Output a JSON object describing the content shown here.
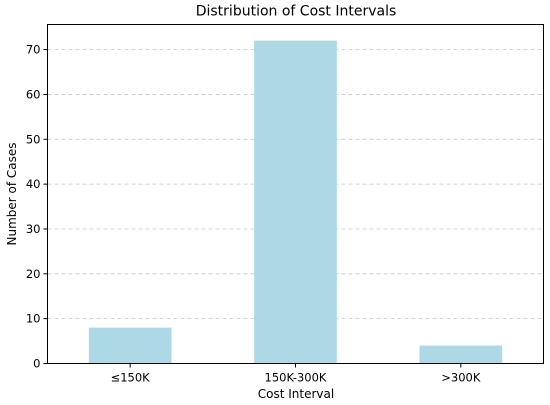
{
  "chart_data": {
    "type": "bar",
    "title": "Distribution of Cost Intervals",
    "xlabel": "Cost Interval",
    "ylabel": "Number of Cases",
    "categories": [
      "≤150K",
      "150K-300K",
      ">300K"
    ],
    "values": [
      8,
      72,
      4
    ],
    "ylim": [
      0,
      75.6
    ],
    "yticks": [
      0,
      10,
      20,
      30,
      40,
      50,
      60,
      70
    ],
    "grid": "y-dashed",
    "bar_color": "#add8e6",
    "grid_color": "#c8c8c8"
  }
}
